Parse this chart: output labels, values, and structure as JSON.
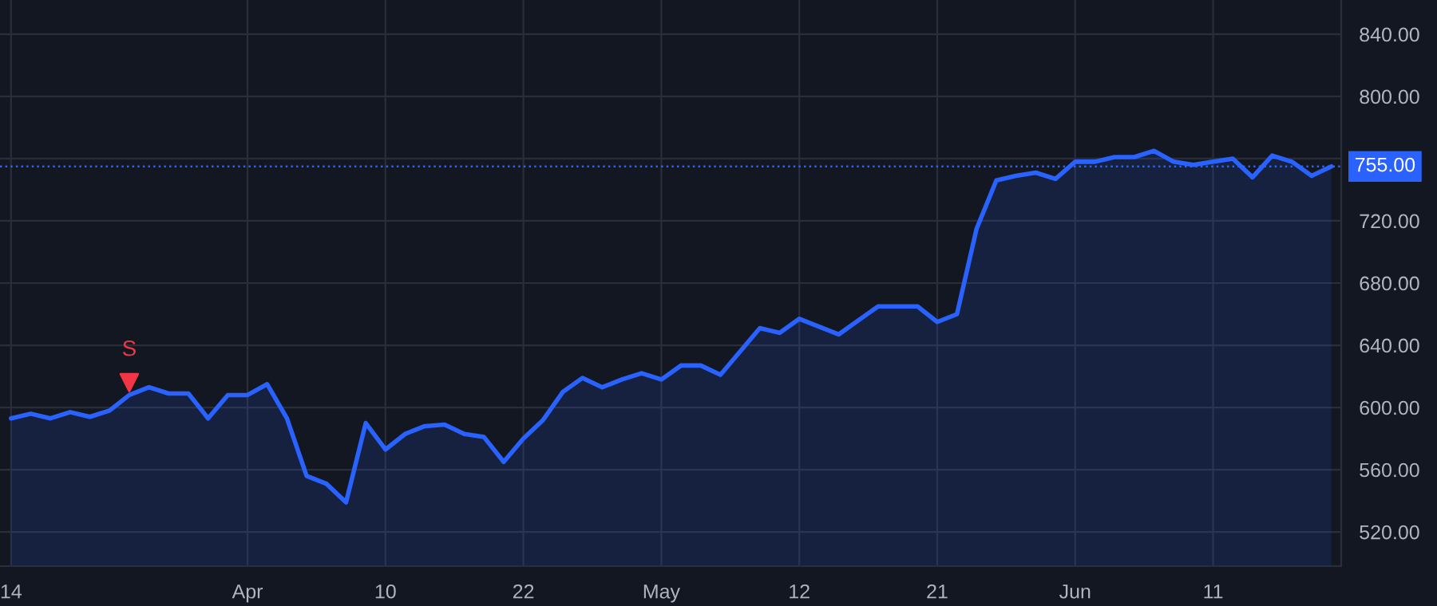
{
  "chart_data": {
    "type": "area",
    "categories": [
      "14",
      null,
      null,
      null,
      null,
      null,
      null,
      null,
      null,
      null,
      null,
      null,
      "Apr",
      null,
      null,
      null,
      null,
      null,
      null,
      "10",
      null,
      null,
      null,
      null,
      null,
      null,
      "22",
      null,
      null,
      null,
      null,
      null,
      null,
      "May",
      null,
      null,
      null,
      null,
      null,
      null,
      "12",
      null,
      null,
      null,
      null,
      null,
      null,
      "21",
      null,
      null,
      null,
      null,
      null,
      null,
      "Jun",
      null,
      null,
      null,
      null,
      null,
      null,
      "11",
      null,
      null,
      null,
      null,
      null,
      null
    ],
    "series": [
      {
        "color": "#2962ff",
        "values": [
          593,
          596,
          593,
          597,
          594,
          598,
          608,
          613,
          609,
          609,
          593,
          608,
          608,
          615,
          593,
          556,
          551,
          539,
          590,
          573,
          583,
          588,
          589,
          583,
          581,
          565,
          580,
          592,
          610,
          619,
          613,
          618,
          622,
          618,
          627,
          627,
          621,
          636,
          651,
          648,
          657,
          652,
          647,
          656,
          665,
          665,
          665,
          655,
          660,
          715,
          746,
          749,
          751,
          747,
          758,
          758,
          761,
          761,
          765,
          758,
          756,
          758,
          760,
          748,
          762,
          758,
          749,
          755
        ]
      },
      {
        "type": "scatter",
        "name": "S",
        "color": "#f23645",
        "marker": "triangle",
        "values": [
          null,
          null,
          null,
          null,
          null,
          null,
          616,
          null,
          null,
          null,
          null,
          null,
          null,
          null,
          null,
          null,
          null,
          null,
          null,
          null,
          null,
          null,
          null,
          null,
          null,
          null,
          null,
          null,
          null,
          null,
          null,
          null,
          null,
          null,
          null,
          null,
          null,
          null,
          null,
          null,
          null,
          null,
          null,
          null,
          null,
          null,
          null,
          null,
          null,
          null,
          null,
          null,
          null,
          null,
          null,
          null,
          null,
          null,
          null,
          null,
          null,
          null,
          null,
          null,
          null,
          null,
          null,
          null
        ]
      }
    ],
    "ylim": [
      498,
      862
    ],
    "yticks": [
      {
        "value": 520,
        "label": "520.00"
      },
      {
        "value": 560,
        "label": "560.00"
      },
      {
        "value": 600,
        "label": "600.00"
      },
      {
        "value": 640,
        "label": "640.00"
      },
      {
        "value": 680,
        "label": "680.00"
      },
      {
        "value": 720,
        "label": "720.00"
      },
      {
        "value": 760,
        "label": null
      },
      {
        "value": 800,
        "label": "800.00"
      },
      {
        "value": 840,
        "label": "840.00"
      }
    ],
    "ref_lines": [
      {
        "axis": "y",
        "value": 755,
        "label": "755.00",
        "color": "#2962ff",
        "line_style": "dotted"
      }
    ],
    "grid": true,
    "legend": false
  }
}
